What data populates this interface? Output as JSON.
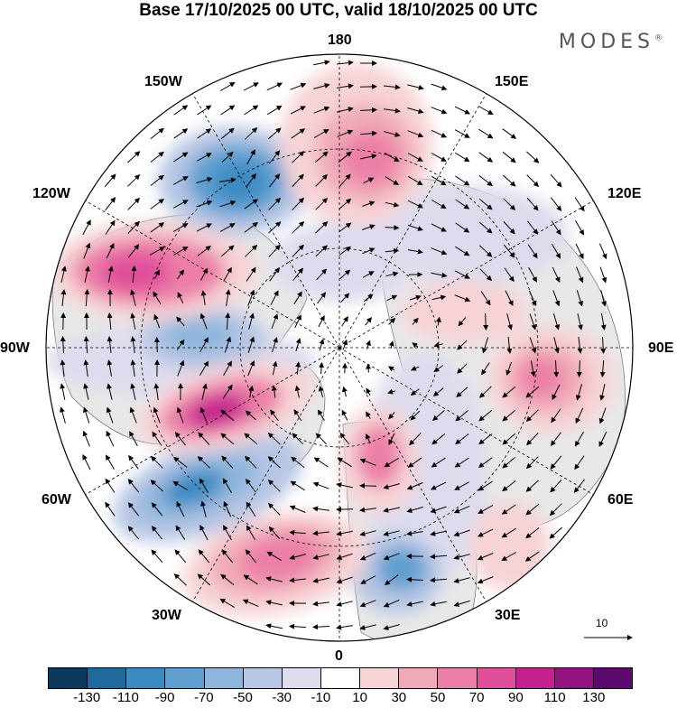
{
  "header": {
    "title": "Base 17/10/2025 00 UTC, valid 18/10/2025 00 UTC",
    "brand": "MODES",
    "brand_mark": "®"
  },
  "longitude_labels": {
    "lon_180": "180",
    "lon_150e": "150E",
    "lon_120e": "120E",
    "lon_90e": "90E",
    "lon_60e": "60E",
    "lon_30e": "30E",
    "lon_0": "0",
    "lon_30w": "30W",
    "lon_60w": "60W",
    "lon_90w": "90W",
    "lon_120w": "120W",
    "lon_150w": "150W"
  },
  "wind_reference": {
    "label": "10"
  },
  "colorbar": {
    "colors": [
      "#0d3a5c",
      "#1f6a9c",
      "#3b8bc2",
      "#5e9fd0",
      "#8fb6dd",
      "#b7c6e4",
      "#dcdcee",
      "#ffffff",
      "#f7d3d5",
      "#f1aab8",
      "#ec7fa7",
      "#e04f9a",
      "#c4208f",
      "#92127f",
      "#5c0a6e"
    ],
    "tick_labels": [
      "-130",
      "-110",
      "-90",
      "-70",
      "-50",
      "-30",
      "-10",
      "10",
      "30",
      "50",
      "70",
      "90",
      "110",
      "130"
    ]
  },
  "colors": {
    "land_fill": "#ececec",
    "coast": "#555555",
    "grid": "#000000"
  }
}
